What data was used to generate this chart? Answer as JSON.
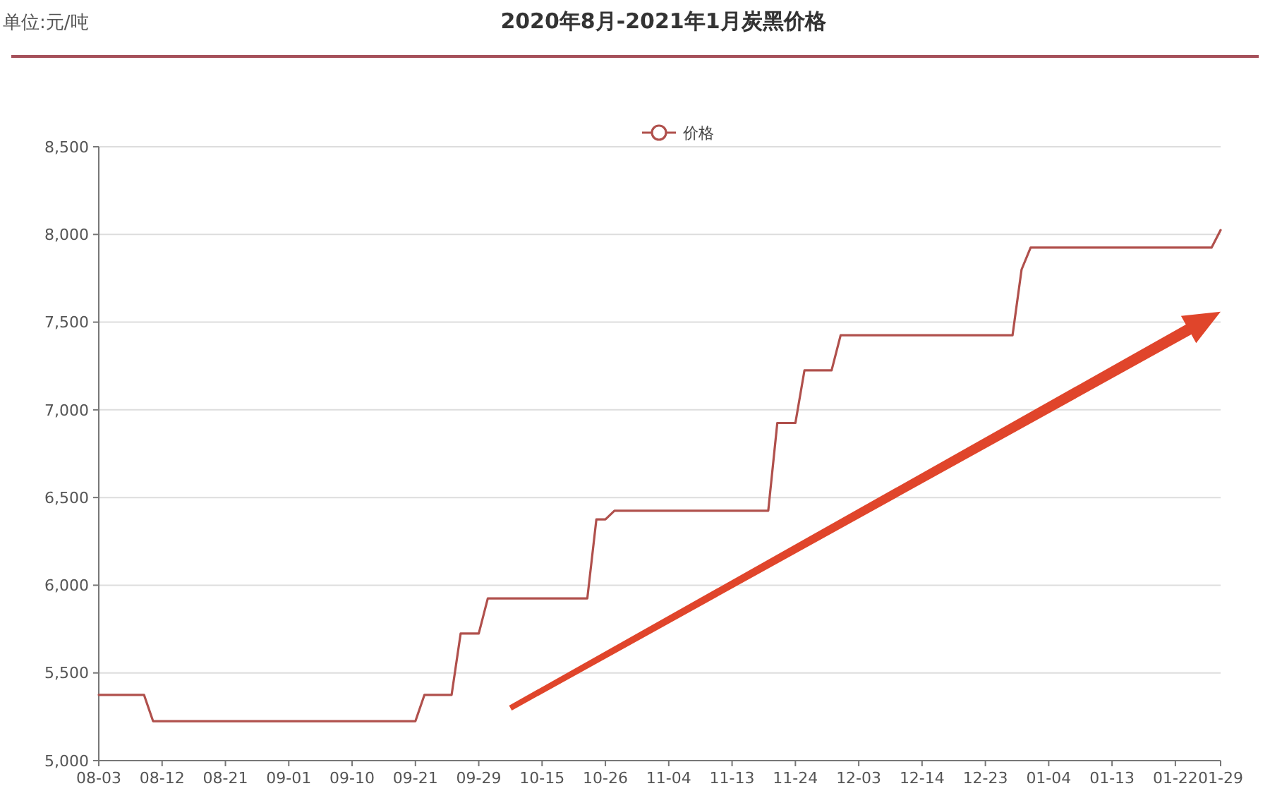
{
  "chart_data": {
    "type": "line",
    "title": "2020年8月-2021年1月炭黑价格",
    "annotations": [
      "单位:元/吨"
    ],
    "categories": [
      "08-03",
      null,
      null,
      null,
      null,
      null,
      null,
      "08-12",
      null,
      null,
      null,
      null,
      null,
      null,
      "08-21",
      null,
      null,
      null,
      null,
      null,
      null,
      "09-01",
      null,
      null,
      null,
      null,
      null,
      null,
      "09-10",
      null,
      null,
      null,
      null,
      null,
      null,
      "09-21",
      null,
      null,
      null,
      null,
      null,
      null,
      "09-29",
      null,
      null,
      null,
      null,
      null,
      null,
      "10-15",
      null,
      null,
      null,
      null,
      null,
      null,
      "10-26",
      null,
      null,
      null,
      null,
      null,
      null,
      "11-04",
      null,
      null,
      null,
      null,
      null,
      null,
      "11-13",
      null,
      null,
      null,
      null,
      null,
      null,
      "11-24",
      null,
      null,
      null,
      null,
      null,
      null,
      "12-03",
      null,
      null,
      null,
      null,
      null,
      null,
      "12-14",
      null,
      null,
      null,
      null,
      null,
      null,
      "12-23",
      null,
      null,
      null,
      null,
      null,
      null,
      "01-04",
      null,
      null,
      null,
      null,
      null,
      null,
      "01-13",
      null,
      null,
      null,
      null,
      null,
      null,
      "01-22",
      null,
      null,
      null,
      null,
      "01-29"
    ],
    "series": [
      {
        "name": "价格",
        "color": "#b0504c",
        "values": [
          5375,
          5375,
          5375,
          5375,
          5375,
          5375,
          5225,
          5225,
          5225,
          5225,
          5225,
          5225,
          5225,
          5225,
          5225,
          5225,
          5225,
          5225,
          5225,
          5225,
          5225,
          5225,
          5225,
          5225,
          5225,
          5225,
          5225,
          5225,
          5225,
          5225,
          5225,
          5225,
          5225,
          5225,
          5225,
          5225,
          5375,
          5375,
          5375,
          5375,
          5725,
          5725,
          5725,
          5925,
          5925,
          5925,
          5925,
          5925,
          5925,
          5925,
          5925,
          5925,
          5925,
          5925,
          5925,
          6375,
          6375,
          6425,
          6425,
          6425,
          6425,
          6425,
          6425,
          6425,
          6425,
          6425,
          6425,
          6425,
          6425,
          6425,
          6425,
          6425,
          6425,
          6425,
          6425,
          6925,
          6925,
          6925,
          7225,
          7225,
          7225,
          7225,
          7425,
          7425,
          7425,
          7425,
          7425,
          7425,
          7425,
          7425,
          7425,
          7425,
          7425,
          7425,
          7425,
          7425,
          7425,
          7425,
          7425,
          7425,
          7425,
          7425,
          7800,
          7925,
          7925,
          7925,
          7925,
          7925,
          7925,
          7925,
          7925,
          7925,
          7925,
          7925,
          7925,
          7925,
          7925,
          7925,
          7925,
          7925,
          7925,
          7925,
          7925,
          7925,
          8025
        ]
      }
    ],
    "ylim": [
      5000,
      8500
    ],
    "yticks": [
      {
        "value": 5000,
        "label": "5,000"
      },
      {
        "value": 5500,
        "label": "5,500"
      },
      {
        "value": 6000,
        "label": "6,000"
      },
      {
        "value": 6500,
        "label": "6,500"
      },
      {
        "value": 7000,
        "label": "7,000"
      },
      {
        "value": 7500,
        "label": "7,500"
      },
      {
        "value": 8000,
        "label": "8,000"
      },
      {
        "value": 8500,
        "label": "8,500"
      }
    ],
    "grid": "y",
    "legend": "top"
  }
}
